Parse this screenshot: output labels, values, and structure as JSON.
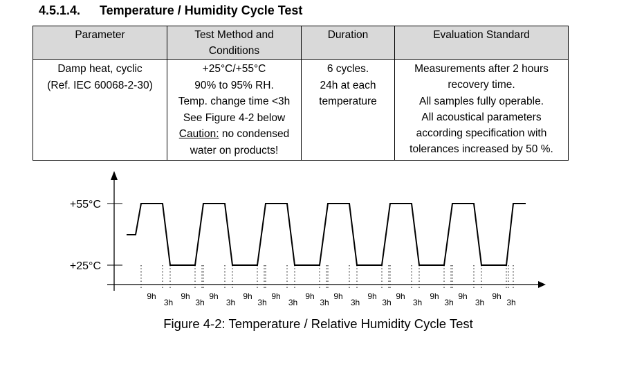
{
  "heading": {
    "number": "4.5.1.4.",
    "text": "Temperature / Humidity Cycle Test"
  },
  "table": {
    "headers": [
      "Parameter",
      "Test Method and Conditions",
      "Duration",
      "Evaluation Standard"
    ],
    "row": {
      "parameter": [
        "Damp heat, cyclic",
        "(Ref. IEC 60068-2-30)"
      ],
      "method": [
        "+25°C/+55°C",
        "90% to 95% RH.",
        "Temp. change time <3h",
        "See Figure 4-2 below"
      ],
      "caution_label": "Caution:",
      "caution_rest": " no condensed",
      "caution_line2": "water on products!",
      "duration": [
        "6 cycles.",
        "24h at each",
        "temperature"
      ],
      "evaluation": [
        "Measurements after 2 hours",
        "recovery time.",
        "All samples fully operable.",
        "All acoustical parameters",
        "according specification with",
        "tolerances increased by 50 %."
      ]
    }
  },
  "figure": {
    "y_labels": {
      "high": "+55°C",
      "low": "+25°C"
    },
    "hold_label": "9h",
    "ramp_label": "3h",
    "caption": "Figure 4-2: Temperature / Relative Humidity Cycle Test"
  },
  "chart_data": {
    "type": "line",
    "title": "Figure 4-2: Temperature / Relative Humidity Cycle Test",
    "cycles": 6,
    "levels_c": [
      25,
      55
    ],
    "hold_hours": 9,
    "ramp_hours": 3,
    "ytick_labels": [
      "+25°C",
      "+55°C"
    ]
  }
}
